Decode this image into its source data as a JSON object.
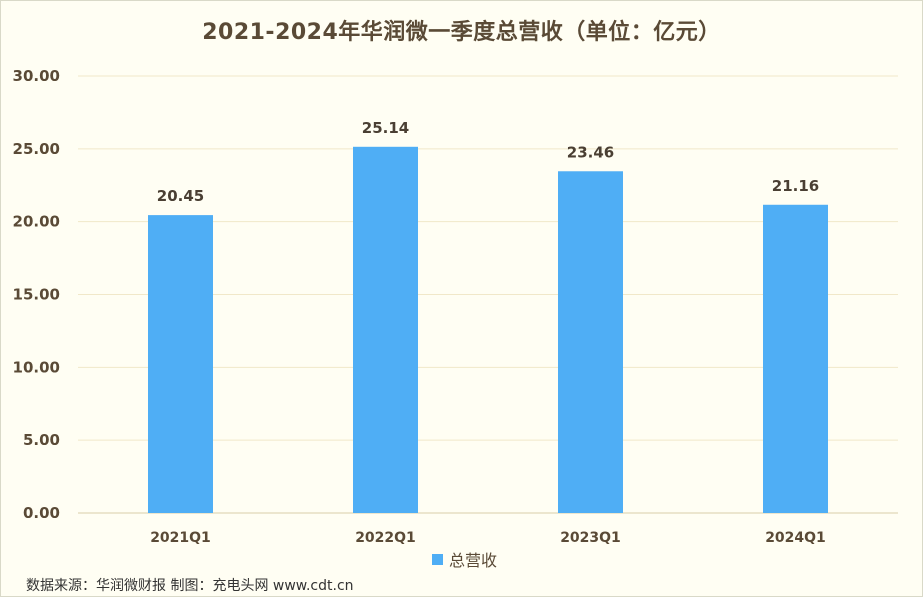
{
  "chart_data": {
    "type": "bar",
    "title": "2021-2024年华润微一季度总营收（单位：亿元）",
    "categories": [
      "2021Q1",
      "2022Q1",
      "2023Q1",
      "2024Q1"
    ],
    "series": [
      {
        "name": "总营收",
        "values": [
          20.45,
          25.14,
          23.46,
          21.16
        ]
      }
    ],
    "yticks": [
      "0.00",
      "5.00",
      "10.00",
      "15.00",
      "20.00",
      "25.00",
      "30.00"
    ],
    "ylim": [
      0,
      30
    ],
    "grid": true,
    "legend_position": "bottom",
    "colors": {
      "bar": "#4faef5",
      "grid": "#f1e8c9",
      "text": "#5a4a36"
    }
  },
  "source_note": "数据来源：华润微财报 制图：充电头网 www.cdt.cn"
}
